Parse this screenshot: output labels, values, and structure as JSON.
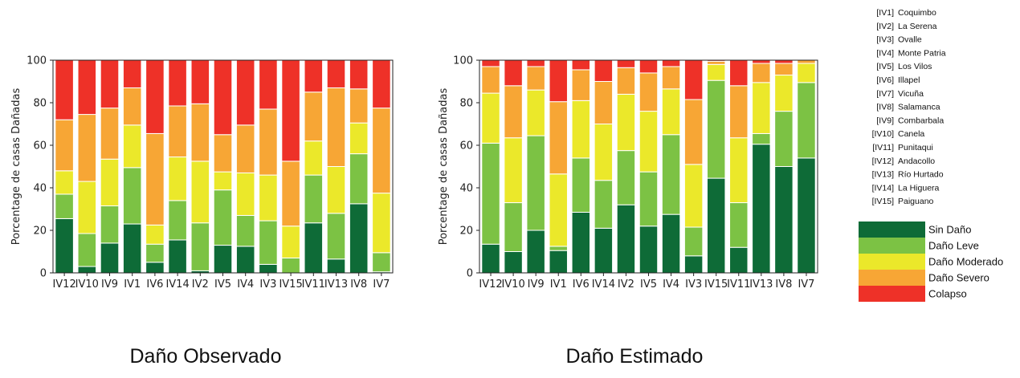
{
  "chart_data": [
    {
      "type": "bar",
      "stacked": true,
      "caption": "Daño Observado",
      "ylabel": "Porcentage de casas Dañadas",
      "ylim": [
        0,
        100
      ],
      "yticks": [
        0,
        20,
        40,
        60,
        80,
        100
      ],
      "categories": [
        "IV12",
        "IV10",
        "IV9",
        "IV1",
        "IV6",
        "IV14",
        "IV2",
        "IV5",
        "IV4",
        "IV3",
        "IV15",
        "IV11",
        "IV13",
        "IV8",
        "IV7"
      ],
      "series": [
        {
          "name": "Sin Daño",
          "values": [
            25.5,
            3,
            14,
            23,
            5,
            15.5,
            1,
            13,
            12.5,
            4,
            0,
            23.5,
            6.5,
            32.5,
            0.5
          ]
        },
        {
          "name": "Daño Leve",
          "values": [
            11.5,
            15.5,
            17.5,
            26.5,
            8.5,
            18.5,
            22.5,
            26,
            14.5,
            20.5,
            7,
            22.5,
            21.5,
            23.5,
            9
          ]
        },
        {
          "name": "Daño Moderado",
          "values": [
            11,
            24.5,
            22,
            20,
            9,
            20.5,
            29,
            8.5,
            20,
            21.5,
            15,
            16,
            22,
            14.5,
            28
          ]
        },
        {
          "name": "Daño Severo",
          "values": [
            24,
            31.5,
            24,
            17.5,
            43,
            24,
            27,
            17.5,
            22.5,
            31,
            30.5,
            23,
            37,
            16,
            40
          ]
        },
        {
          "name": "Colapso",
          "values": [
            28,
            25.5,
            22.5,
            13,
            34.5,
            21.5,
            20.5,
            35,
            30.5,
            23,
            47.5,
            15,
            13,
            13.5,
            22.5
          ]
        }
      ]
    },
    {
      "type": "bar",
      "stacked": true,
      "caption": "Daño Estimado",
      "ylabel": "Porcentage de casas Dañadas",
      "ylim": [
        0,
        100
      ],
      "yticks": [
        0,
        20,
        40,
        60,
        80,
        100
      ],
      "categories": [
        "IV12",
        "IV10",
        "IV9",
        "IV1",
        "IV6",
        "IV14",
        "IV2",
        "IV5",
        "IV4",
        "IV3",
        "IV15",
        "IV11",
        "IV13",
        "IV8",
        "IV7"
      ],
      "series": [
        {
          "name": "Sin Daño",
          "values": [
            13.5,
            10,
            20,
            10.5,
            28.5,
            21,
            32,
            22,
            27.5,
            8,
            44.5,
            12,
            60.5,
            50,
            54
          ]
        },
        {
          "name": "Daño Leve",
          "values": [
            47.5,
            23,
            44.5,
            2,
            25.5,
            22.5,
            25.5,
            25.5,
            37.5,
            13.5,
            46,
            21,
            5,
            26,
            35.5
          ]
        },
        {
          "name": "Daño Moderado",
          "values": [
            23.5,
            30.5,
            21.5,
            34,
            27,
            26.5,
            26.5,
            28.5,
            21.5,
            29.5,
            7.5,
            30.5,
            24,
            17,
            9
          ]
        },
        {
          "name": "Daño Severo",
          "values": [
            12.5,
            24.5,
            11,
            34,
            14.5,
            20,
            12.5,
            18,
            10.5,
            30.5,
            1.5,
            24.5,
            9,
            5.5,
            1.5
          ]
        },
        {
          "name": "Colapso",
          "values": [
            3,
            12,
            3,
            19.5,
            4.5,
            10,
            3.5,
            6,
            3,
            18.5,
            0.5,
            12,
            1.5,
            1.5,
            0
          ]
        }
      ]
    }
  ],
  "colors": {
    "Sin Daño": "#0e6b37",
    "Daño Leve": "#7cc244",
    "Daño Moderado": "#ebe82a",
    "Daño Severo": "#f7a635",
    "Colapso": "#ee3128"
  },
  "regions": [
    {
      "code": "[IV1]",
      "name": "Coquimbo"
    },
    {
      "code": "[IV2]",
      "name": "La Serena"
    },
    {
      "code": "[IV3]",
      "name": "Ovalle"
    },
    {
      "code": "[IV4]",
      "name": "Monte Patria"
    },
    {
      "code": "[IV5]",
      "name": "Los Vilos"
    },
    {
      "code": "[IV6]",
      "name": "Illapel"
    },
    {
      "code": "[IV7]",
      "name": "Vicuña"
    },
    {
      "code": "[IV8]",
      "name": "Salamanca"
    },
    {
      "code": "[IV9]",
      "name": "Combarbala"
    },
    {
      "code": "[IV10]",
      "name": "Canela"
    },
    {
      "code": "[IV11]",
      "name": "Punitaqui"
    },
    {
      "code": "[IV12]",
      "name": "Andacollo"
    },
    {
      "code": "[IV13]",
      "name": "Río Hurtado"
    },
    {
      "code": "[IV14]",
      "name": "La Higuera"
    },
    {
      "code": "[IV15]",
      "name": "Paiguano"
    }
  ],
  "legend": [
    "Sin Daño",
    "Daño Leve",
    "Daño Moderado",
    "Daño Severo",
    "Colapso"
  ]
}
